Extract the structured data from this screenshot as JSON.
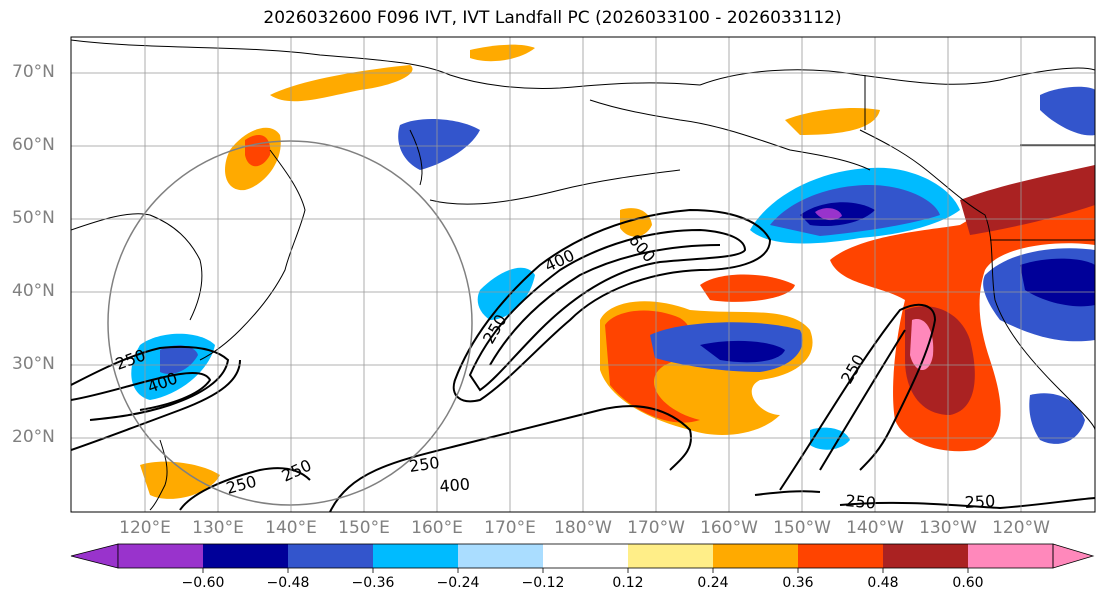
{
  "title": "2026032600 F096 IVT, IVT Landfall PC (2026033100 - 2026033112)",
  "map": {
    "lat_labels": [
      "70°N",
      "60°N",
      "50°N",
      "40°N",
      "30°N",
      "20°N"
    ],
    "lon_labels": [
      "120°E",
      "130°E",
      "140°E",
      "150°E",
      "160°E",
      "170°E",
      "180°W",
      "170°W",
      "160°W",
      "150°W",
      "140°W",
      "130°W",
      "120°W"
    ],
    "contour_labels": [
      "250",
      "400",
      "600",
      "250",
      "250",
      "400",
      "250",
      "250",
      "400",
      "250",
      "250",
      "250"
    ],
    "grid": true
  },
  "colorbar": {
    "tick_labels": [
      "−0.60",
      "−0.48",
      "−0.36",
      "−0.24",
      "−0.12",
      "0.12",
      "0.24",
      "0.36",
      "0.48",
      "0.60"
    ],
    "colors": [
      "#9933cc",
      "#000099",
      "#3355cc",
      "#00bbff",
      "#aaddff",
      "#ffffff",
      "#ffee88",
      "#ffaa00",
      "#ff4400",
      "#aa2222",
      "#ff88bb"
    ]
  }
}
